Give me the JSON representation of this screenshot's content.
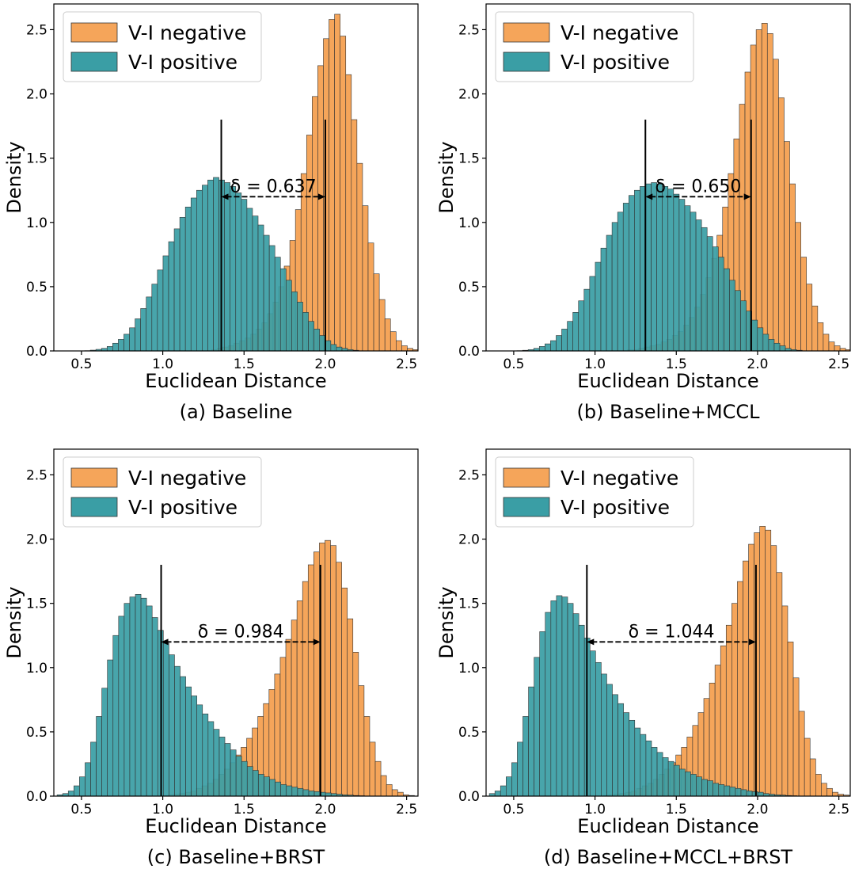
{
  "colors": {
    "negative": "#f5a55a",
    "positive": "#3a9ea5",
    "bar_edge": "#333333",
    "marker": "#000000"
  },
  "chart_data": [
    {
      "type": "histogram",
      "caption": "(a) Baseline",
      "xlabel": "Euclidean Distance",
      "ylabel": "Density",
      "xlim": [
        0.33,
        2.57
      ],
      "ylim": [
        0,
        2.7
      ],
      "xticks": [
        0.5,
        1.0,
        1.5,
        2.0,
        2.5
      ],
      "yticks": [
        0.0,
        0.5,
        1.0,
        1.5,
        2.0,
        2.5
      ],
      "legend_position": "top-left",
      "grid": false,
      "series": [
        {
          "name": "V-I negative",
          "key": "negative",
          "bin_start": 1.3,
          "bin_width": 0.0344,
          "values": [
            0.01,
            0.02,
            0.03,
            0.04,
            0.06,
            0.08,
            0.1,
            0.13,
            0.17,
            0.22,
            0.29,
            0.38,
            0.5,
            0.66,
            0.86,
            1.1,
            1.38,
            1.68,
            1.98,
            2.22,
            2.43,
            2.58,
            2.62,
            2.45,
            2.15,
            1.8,
            1.46,
            1.13,
            0.84,
            0.6,
            0.4,
            0.25,
            0.15,
            0.08,
            0.04,
            0.02,
            0.01
          ]
        },
        {
          "name": "V-I positive",
          "key": "positive",
          "bin_start": 0.52,
          "bin_width": 0.0344,
          "values": [
            0.002,
            0.006,
            0.012,
            0.02,
            0.035,
            0.06,
            0.09,
            0.13,
            0.18,
            0.25,
            0.33,
            0.42,
            0.52,
            0.63,
            0.74,
            0.85,
            0.95,
            1.04,
            1.12,
            1.19,
            1.25,
            1.29,
            1.33,
            1.35,
            1.33,
            1.31,
            1.28,
            1.23,
            1.18,
            1.11,
            1.05,
            0.98,
            0.9,
            0.82,
            0.73,
            0.64,
            0.55,
            0.46,
            0.38,
            0.3,
            0.23,
            0.17,
            0.12,
            0.08,
            0.05,
            0.03,
            0.02,
            0.01,
            0.005
          ]
        }
      ],
      "markers": {
        "pos": 1.36,
        "neg": 2.0,
        "top": 1.8,
        "arrow_y": 1.2
      },
      "delta_label": "δ = 0.637"
    },
    {
      "type": "histogram",
      "caption": "(b) Baseline+MCCL",
      "xlabel": "Euclidean Distance",
      "ylabel": "Density",
      "xlim": [
        0.33,
        2.57
      ],
      "ylim": [
        0,
        2.7
      ],
      "xticks": [
        0.5,
        1.0,
        1.5,
        2.0,
        2.5
      ],
      "yticks": [
        0.0,
        0.5,
        1.0,
        1.5,
        2.0,
        2.5
      ],
      "legend_position": "top-left",
      "grid": false,
      "series": [
        {
          "name": "V-I negative",
          "key": "negative",
          "bin_start": 1.2,
          "bin_width": 0.0344,
          "values": [
            0.01,
            0.01,
            0.02,
            0.03,
            0.04,
            0.05,
            0.07,
            0.09,
            0.12,
            0.15,
            0.2,
            0.26,
            0.34,
            0.44,
            0.57,
            0.72,
            0.9,
            1.12,
            1.38,
            1.65,
            1.92,
            2.17,
            2.38,
            2.5,
            2.55,
            2.47,
            2.27,
            1.97,
            1.63,
            1.3,
            1.0,
            0.73,
            0.52,
            0.35,
            0.22,
            0.13,
            0.07,
            0.04,
            0.02,
            0.01
          ]
        },
        {
          "name": "V-I positive",
          "key": "positive",
          "bin_start": 0.52,
          "bin_width": 0.0344,
          "values": [
            0.002,
            0.005,
            0.01,
            0.02,
            0.035,
            0.055,
            0.08,
            0.12,
            0.17,
            0.23,
            0.3,
            0.39,
            0.48,
            0.58,
            0.69,
            0.8,
            0.9,
            1.0,
            1.08,
            1.15,
            1.21,
            1.25,
            1.28,
            1.3,
            1.31,
            1.3,
            1.28,
            1.26,
            1.22,
            1.18,
            1.13,
            1.08,
            1.02,
            0.96,
            0.89,
            0.81,
            0.73,
            0.64,
            0.55,
            0.47,
            0.39,
            0.31,
            0.24,
            0.18,
            0.13,
            0.09,
            0.06,
            0.04,
            0.02,
            0.01,
            0.005
          ]
        }
      ],
      "markers": {
        "pos": 1.31,
        "neg": 1.96,
        "top": 1.8,
        "arrow_y": 1.2
      },
      "delta_label": "δ = 0.650"
    },
    {
      "type": "histogram",
      "caption": "(c) Baseline+BRST",
      "xlabel": "Euclidean Distance",
      "ylabel": "Density",
      "xlim": [
        0.33,
        2.57
      ],
      "ylim": [
        0,
        2.7
      ],
      "xticks": [
        0.5,
        1.0,
        1.5,
        2.0,
        2.5
      ],
      "yticks": [
        0.0,
        0.5,
        1.0,
        1.5,
        2.0,
        2.5
      ],
      "legend_position": "top-left",
      "grid": false,
      "series": [
        {
          "name": "V-I negative",
          "key": "negative",
          "bin_start": 1.0,
          "bin_width": 0.0344,
          "values": [
            0.005,
            0.01,
            0.015,
            0.02,
            0.03,
            0.04,
            0.06,
            0.08,
            0.1,
            0.13,
            0.17,
            0.21,
            0.26,
            0.32,
            0.38,
            0.45,
            0.53,
            0.62,
            0.72,
            0.83,
            0.95,
            1.08,
            1.22,
            1.37,
            1.52,
            1.67,
            1.8,
            1.9,
            1.97,
            1.99,
            1.95,
            1.82,
            1.62,
            1.38,
            1.12,
            0.86,
            0.62,
            0.42,
            0.27,
            0.16,
            0.09,
            0.05,
            0.03,
            0.01,
            0.005
          ]
        },
        {
          "name": "V-I positive",
          "key": "positive",
          "bin_start": 0.35,
          "bin_width": 0.0344,
          "values": [
            0.01,
            0.02,
            0.04,
            0.08,
            0.15,
            0.26,
            0.42,
            0.62,
            0.84,
            1.06,
            1.25,
            1.4,
            1.5,
            1.55,
            1.57,
            1.54,
            1.48,
            1.39,
            1.29,
            1.19,
            1.1,
            1.01,
            0.93,
            0.85,
            0.78,
            0.71,
            0.64,
            0.58,
            0.52,
            0.46,
            0.41,
            0.36,
            0.31,
            0.27,
            0.23,
            0.2,
            0.17,
            0.15,
            0.13,
            0.11,
            0.09,
            0.08,
            0.07,
            0.06,
            0.05,
            0.04,
            0.035,
            0.03,
            0.025,
            0.02,
            0.015,
            0.01,
            0.008,
            0.005,
            0.003
          ]
        }
      ],
      "markers": {
        "pos": 0.99,
        "neg": 1.97,
        "top": 1.8,
        "arrow_y": 1.2
      },
      "delta_label": "δ = 0.984"
    },
    {
      "type": "histogram",
      "caption": "(d) Baseline+MCCL+BRST",
      "xlabel": "Euclidean Distance",
      "ylabel": "Density",
      "xlim": [
        0.33,
        2.57
      ],
      "ylim": [
        0,
        2.7
      ],
      "xticks": [
        0.5,
        1.0,
        1.5,
        2.0,
        2.5
      ],
      "yticks": [
        0.0,
        0.5,
        1.0,
        1.5,
        2.0,
        2.5
      ],
      "legend_position": "top-left",
      "grid": false,
      "series": [
        {
          "name": "V-I negative",
          "key": "negative",
          "bin_start": 1.05,
          "bin_width": 0.0344,
          "values": [
            0.005,
            0.01,
            0.015,
            0.02,
            0.03,
            0.04,
            0.06,
            0.08,
            0.1,
            0.13,
            0.17,
            0.21,
            0.26,
            0.32,
            0.38,
            0.46,
            0.55,
            0.65,
            0.76,
            0.88,
            1.02,
            1.17,
            1.33,
            1.5,
            1.67,
            1.83,
            1.96,
            2.05,
            2.1,
            2.07,
            1.95,
            1.74,
            1.48,
            1.2,
            0.92,
            0.66,
            0.45,
            0.29,
            0.17,
            0.1,
            0.06,
            0.03,
            0.015,
            0.008
          ]
        },
        {
          "name": "V-I positive",
          "key": "positive",
          "bin_start": 0.35,
          "bin_width": 0.0344,
          "values": [
            0.02,
            0.04,
            0.08,
            0.15,
            0.26,
            0.42,
            0.62,
            0.85,
            1.08,
            1.28,
            1.43,
            1.52,
            1.56,
            1.55,
            1.5,
            1.42,
            1.33,
            1.23,
            1.13,
            1.04,
            0.95,
            0.87,
            0.79,
            0.72,
            0.65,
            0.59,
            0.53,
            0.48,
            0.43,
            0.38,
            0.34,
            0.3,
            0.27,
            0.24,
            0.21,
            0.19,
            0.17,
            0.15,
            0.13,
            0.12,
            0.1,
            0.09,
            0.08,
            0.07,
            0.06,
            0.05,
            0.04,
            0.035,
            0.03,
            0.02,
            0.015,
            0.01,
            0.008,
            0.005,
            0.003
          ]
        }
      ],
      "markers": {
        "pos": 0.95,
        "neg": 1.99,
        "top": 1.8,
        "arrow_y": 1.2
      },
      "delta_label": "δ = 1.044"
    }
  ]
}
